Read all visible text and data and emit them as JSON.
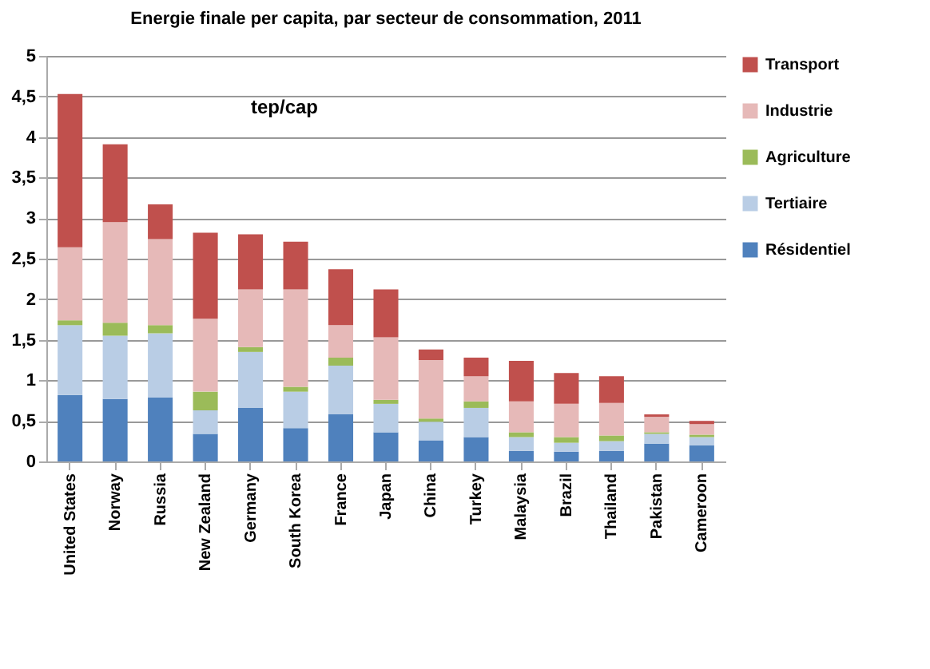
{
  "chart_data": {
    "type": "bar",
    "stacked": true,
    "title": "Energie finale per capita, par secteur de consommation, 2011",
    "annotations": [
      "tep/cap"
    ],
    "categories": [
      "United States",
      "Norway",
      "Russia",
      "New Zealand",
      "Germany",
      "South Korea",
      "France",
      "Japan",
      "China",
      "Turkey",
      "Malaysia",
      "Brazil",
      "Thailand",
      "Pakistan",
      "Cameroon"
    ],
    "series": [
      {
        "name": "Résidentiel",
        "color": "#4f81bd",
        "values": [
          0.82,
          0.77,
          0.79,
          0.34,
          0.66,
          0.41,
          0.58,
          0.36,
          0.26,
          0.3,
          0.13,
          0.12,
          0.13,
          0.22,
          0.2
        ]
      },
      {
        "name": "Tertiaire",
        "color": "#b9cde5",
        "values": [
          0.86,
          0.78,
          0.79,
          0.29,
          0.69,
          0.45,
          0.6,
          0.35,
          0.23,
          0.36,
          0.17,
          0.11,
          0.12,
          0.12,
          0.1
        ]
      },
      {
        "name": "Agriculture",
        "color": "#9bbb59",
        "values": [
          0.06,
          0.16,
          0.1,
          0.23,
          0.06,
          0.06,
          0.1,
          0.05,
          0.04,
          0.08,
          0.06,
          0.07,
          0.07,
          0.02,
          0.03
        ]
      },
      {
        "name": "Industrie",
        "color": "#e6b9b8",
        "values": [
          0.9,
          1.24,
          1.06,
          0.9,
          0.71,
          1.2,
          0.4,
          0.77,
          0.72,
          0.31,
          0.38,
          0.41,
          0.4,
          0.19,
          0.13
        ]
      },
      {
        "name": "Transport",
        "color": "#c0504d",
        "values": [
          1.89,
          0.96,
          0.43,
          1.06,
          0.68,
          0.59,
          0.69,
          0.59,
          0.13,
          0.23,
          0.5,
          0.38,
          0.33,
          0.03,
          0.04
        ]
      }
    ],
    "ylim": [
      0,
      5
    ],
    "yticks": [
      0,
      {
        "value": 0.5,
        "label": "0,5"
      },
      1,
      {
        "value": 1.5,
        "label": "1,5"
      },
      2,
      {
        "value": 2.5,
        "label": "2,5"
      },
      3,
      {
        "value": 3.5,
        "label": "3,5"
      },
      4,
      {
        "value": 4.5,
        "label": "4,5"
      },
      5
    ],
    "grid": "y",
    "legend": "right"
  }
}
